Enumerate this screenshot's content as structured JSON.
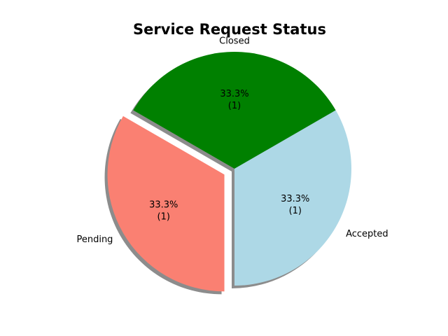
{
  "chart_data": {
    "type": "pie",
    "title": "Service Request Status",
    "slices": [
      {
        "label": "Closed",
        "value": 1,
        "percent_label": "33.3%",
        "count_label": "(1)",
        "color": "#008000",
        "explode": 0
      },
      {
        "label": "Pending",
        "value": 1,
        "percent_label": "33.3%",
        "count_label": "(1)",
        "color": "#fa8072",
        "explode": 0.1
      },
      {
        "label": "Accepted",
        "value": 1,
        "percent_label": "33.3%",
        "count_label": "(1)",
        "color": "#add8e6",
        "explode": 0
      }
    ],
    "start_angle_deg": 30,
    "shadow": true
  }
}
